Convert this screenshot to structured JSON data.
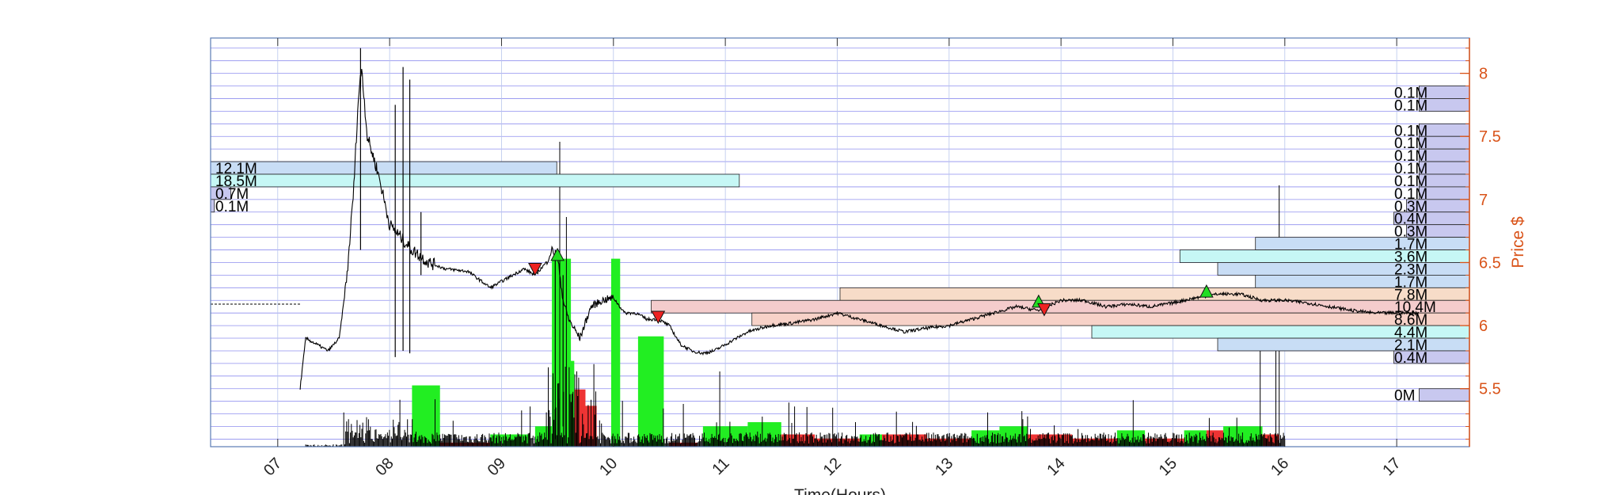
{
  "chart_data": {
    "type": "line",
    "xlabel": "Time(Hours)",
    "ylabel": "Price $",
    "xlim": [
      6.4,
      17.65
    ],
    "ylim": [
      5.04,
      8.28
    ],
    "x_ticks": [
      "07",
      "08",
      "09",
      "10",
      "11",
      "12",
      "13",
      "14",
      "15",
      "16",
      "17"
    ],
    "x_tick_values": [
      7,
      8,
      9,
      10,
      11,
      12,
      13,
      14,
      15,
      16,
      17
    ],
    "y_ticks": [
      "5.5",
      "6",
      "6.5",
      "7",
      "7.5",
      "8"
    ],
    "y_tick_values": [
      5.5,
      6,
      6.5,
      7,
      7.5,
      8
    ],
    "grid": true,
    "series": [
      {
        "color": "#000000",
        "x": [
          7.2,
          7.25,
          7.35,
          7.45,
          7.55,
          7.62,
          7.68,
          7.72,
          7.75,
          7.8,
          7.9,
          8.0,
          8.1,
          8.2,
          8.35,
          8.5,
          8.7,
          8.9,
          9.0,
          9.1,
          9.2,
          9.3,
          9.4,
          9.45,
          9.5,
          9.55,
          9.6,
          9.7,
          9.8,
          9.9,
          10.0,
          10.1,
          10.2,
          10.3,
          10.4,
          10.5,
          10.6,
          10.7,
          10.8,
          10.9,
          11.0,
          11.2,
          11.4,
          11.6,
          11.8,
          12.0,
          12.2,
          12.4,
          12.6,
          12.8,
          13.0,
          13.2,
          13.4,
          13.6,
          13.8,
          14.0,
          14.2,
          14.4,
          14.6,
          14.8,
          15.0,
          15.2,
          15.4,
          15.6,
          15.8,
          16.0,
          16.2,
          16.4,
          16.6,
          16.8,
          17.0,
          17.2
        ],
        "y": [
          5.5,
          5.9,
          5.85,
          5.8,
          5.9,
          6.4,
          7.1,
          7.8,
          8.05,
          7.5,
          7.2,
          6.8,
          6.7,
          6.6,
          6.5,
          6.45,
          6.43,
          6.3,
          6.35,
          6.4,
          6.45,
          6.4,
          6.5,
          6.6,
          6.55,
          6.2,
          6.05,
          5.9,
          6.15,
          6.2,
          6.22,
          6.1,
          6.1,
          6.05,
          6.05,
          6.0,
          5.85,
          5.8,
          5.78,
          5.8,
          5.85,
          5.95,
          6.0,
          6.02,
          6.05,
          6.1,
          6.05,
          6.0,
          5.95,
          5.98,
          6.0,
          6.05,
          6.1,
          6.15,
          6.12,
          6.2,
          6.2,
          6.15,
          6.17,
          6.15,
          6.18,
          6.22,
          6.25,
          6.25,
          6.2,
          6.2,
          6.18,
          6.15,
          6.12,
          6.1,
          6.1,
          6.1
        ]
      }
    ],
    "buy_markers": [
      {
        "x": 9.5,
        "y": 6.56
      },
      {
        "x": 13.8,
        "y": 6.19
      },
      {
        "x": 15.3,
        "y": 6.27
      }
    ],
    "sell_markers": [
      {
        "x": 9.3,
        "y": 6.45
      },
      {
        "x": 10.4,
        "y": 6.07
      },
      {
        "x": 13.85,
        "y": 6.13
      }
    ],
    "volume_bars": [
      {
        "x0": 8.2,
        "x1": 8.45,
        "h": 0.15,
        "color": "green"
      },
      {
        "x0": 8.45,
        "x1": 8.9,
        "h": 0.01,
        "color": "red"
      },
      {
        "x0": 8.9,
        "x1": 9.25,
        "h": 0.03,
        "color": "green"
      },
      {
        "x0": 9.3,
        "x1": 9.45,
        "h": 0.05,
        "color": "green"
      },
      {
        "x0": 9.45,
        "x1": 9.62,
        "h": 0.46,
        "color": "green"
      },
      {
        "x0": 9.55,
        "x1": 9.65,
        "h": 0.21,
        "color": "green"
      },
      {
        "x0": 9.65,
        "x1": 9.75,
        "h": 0.14,
        "color": "red"
      },
      {
        "x0": 9.75,
        "x1": 9.85,
        "h": 0.1,
        "color": "red"
      },
      {
        "x0": 9.98,
        "x1": 10.06,
        "h": 0.46,
        "color": "green"
      },
      {
        "x0": 10.22,
        "x1": 10.45,
        "h": 0.27,
        "color": "green"
      },
      {
        "x0": 10.5,
        "x1": 10.75,
        "h": 0.01,
        "color": "red"
      },
      {
        "x0": 10.8,
        "x1": 11.2,
        "h": 0.05,
        "color": "green"
      },
      {
        "x0": 11.2,
        "x1": 11.5,
        "h": 0.06,
        "color": "green"
      },
      {
        "x0": 11.5,
        "x1": 11.8,
        "h": 0.03,
        "color": "red"
      },
      {
        "x0": 11.8,
        "x1": 12.2,
        "h": 0.02,
        "color": "red"
      },
      {
        "x0": 12.2,
        "x1": 12.4,
        "h": 0.03,
        "color": "green"
      },
      {
        "x0": 12.4,
        "x1": 12.8,
        "h": 0.03,
        "color": "red"
      },
      {
        "x0": 12.8,
        "x1": 13.2,
        "h": 0.02,
        "color": "red"
      },
      {
        "x0": 13.2,
        "x1": 13.45,
        "h": 0.04,
        "color": "green"
      },
      {
        "x0": 13.45,
        "x1": 13.7,
        "h": 0.05,
        "color": "green"
      },
      {
        "x0": 13.7,
        "x1": 14.1,
        "h": 0.03,
        "color": "red"
      },
      {
        "x0": 14.1,
        "x1": 14.5,
        "h": 0.02,
        "color": "red"
      },
      {
        "x0": 14.5,
        "x1": 14.75,
        "h": 0.04,
        "color": "green"
      },
      {
        "x0": 14.75,
        "x1": 15.1,
        "h": 0.02,
        "color": "red"
      },
      {
        "x0": 15.1,
        "x1": 15.3,
        "h": 0.04,
        "color": "green"
      },
      {
        "x0": 15.3,
        "x1": 15.45,
        "h": 0.04,
        "color": "red"
      },
      {
        "x0": 15.45,
        "x1": 15.8,
        "h": 0.05,
        "color": "green"
      },
      {
        "x0": 15.8,
        "x1": 15.95,
        "h": 0.03,
        "color": "red"
      }
    ],
    "left_volume_profile": [
      {
        "price": 7.25,
        "label": "12.1M",
        "length": 0.275,
        "color": "#c8ddf5"
      },
      {
        "price": 7.15,
        "label": "18.5M",
        "length": 0.42,
        "color": "#c6f7f5"
      },
      {
        "price": 7.05,
        "label": "0.7M",
        "length": 0.016,
        "color": "#c8c8ef"
      },
      {
        "price": 6.95,
        "label": "0.1M",
        "length": 0.003,
        "color": "#c8c8ef"
      }
    ],
    "right_volume_profile": [
      {
        "price": 7.85,
        "label": "0.1M",
        "length": 0.04,
        "color": "#c8c8ef"
      },
      {
        "price": 7.75,
        "label": "0.1M",
        "length": 0.04,
        "color": "#c8c8ef"
      },
      {
        "price": 7.55,
        "label": "0.1M",
        "length": 0.04,
        "color": "#c8c8ef"
      },
      {
        "price": 7.45,
        "label": "0.1M",
        "length": 0.04,
        "color": "#c8c8ef"
      },
      {
        "price": 7.35,
        "label": "0.1M",
        "length": 0.04,
        "color": "#c8c8ef"
      },
      {
        "price": 7.25,
        "label": "0.1M",
        "length": 0.04,
        "color": "#c8c8ef"
      },
      {
        "price": 7.15,
        "label": "0.1M",
        "length": 0.04,
        "color": "#c8c8ef"
      },
      {
        "price": 7.05,
        "label": "0.1M",
        "length": 0.04,
        "color": "#c8c8ef"
      },
      {
        "price": 6.95,
        "label": "0.3M",
        "length": 0.05,
        "color": "#c8c8ef"
      },
      {
        "price": 6.85,
        "label": "0.4M",
        "length": 0.06,
        "color": "#c8c8ef"
      },
      {
        "price": 6.75,
        "label": "0.3M",
        "length": 0.05,
        "color": "#c8c8ef"
      },
      {
        "price": 6.65,
        "label": "1.7M",
        "length": 0.17,
        "color": "#c8ddf5"
      },
      {
        "price": 6.55,
        "label": "3.6M",
        "length": 0.23,
        "color": "#c6f7f5"
      },
      {
        "price": 6.45,
        "label": "2.3M",
        "length": 0.2,
        "color": "#c8ddf5"
      },
      {
        "price": 6.35,
        "label": "1.7M",
        "length": 0.17,
        "color": "#c8ddf5"
      },
      {
        "price": 6.25,
        "label": "7.8M",
        "length": 0.5,
        "color": "#f7dcc8"
      },
      {
        "price": 6.15,
        "label": "10.4M",
        "length": 0.65,
        "color": "#f4cccc"
      },
      {
        "price": 6.05,
        "label": "8.6M",
        "length": 0.57,
        "color": "#f7d2c8"
      },
      {
        "price": 5.95,
        "label": "4.4M",
        "length": 0.3,
        "color": "#c6f7f5"
      },
      {
        "price": 5.85,
        "label": "2.1M",
        "length": 0.2,
        "color": "#c8ddf5"
      },
      {
        "price": 5.75,
        "label": "0.4M",
        "length": 0.06,
        "color": "#c8c8ef"
      },
      {
        "price": 5.45,
        "label": "0M",
        "length": 0.04,
        "color": "#c8c8ef"
      }
    ],
    "reference_line": {
      "price": 6.17,
      "x_end": 7.2
    },
    "colors": {
      "axis": "#d95319",
      "grid_h": "#8f8fef",
      "grid_v": "#b8c6ec",
      "buy": "#22dd22",
      "sell": "#ee2222",
      "vol_green": "#22ee22",
      "vol_red": "#ee3333"
    }
  }
}
